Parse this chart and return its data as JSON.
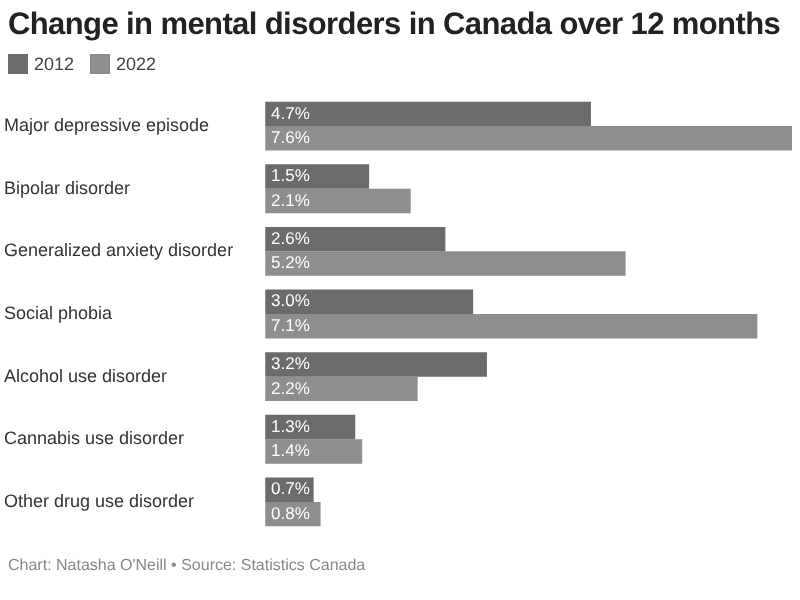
{
  "chart_data": {
    "type": "bar",
    "orientation": "horizontal",
    "title": "Change in mental disorders in Canada over 12 months",
    "categories": [
      "Major depressive episode",
      "Bipolar disorder",
      "Generalized anxiety disorder",
      "Social phobia",
      "Alcohol use disorder",
      "Cannabis use disorder",
      "Other drug use disorder"
    ],
    "series": [
      {
        "name": "2012",
        "color": "#6b6b6b",
        "values": [
          4.7,
          1.5,
          2.6,
          3.0,
          3.2,
          1.3,
          0.7
        ],
        "value_labels": [
          "4.7%",
          "1.5%",
          "2.6%",
          "3.0%",
          "3.2%",
          "1.3%",
          "0.7%"
        ]
      },
      {
        "name": "2022",
        "color": "#8e8e8e",
        "values": [
          7.6,
          2.1,
          5.2,
          7.1,
          2.2,
          1.4,
          0.8
        ],
        "value_labels": [
          "7.6%",
          "2.1%",
          "5.2%",
          "7.1%",
          "2.2%",
          "1.4%",
          "0.8%"
        ]
      }
    ],
    "legend": "top left",
    "annotations": [
      "Chart: Natasha O'Neill • Source: Statistics Canada"
    ]
  }
}
